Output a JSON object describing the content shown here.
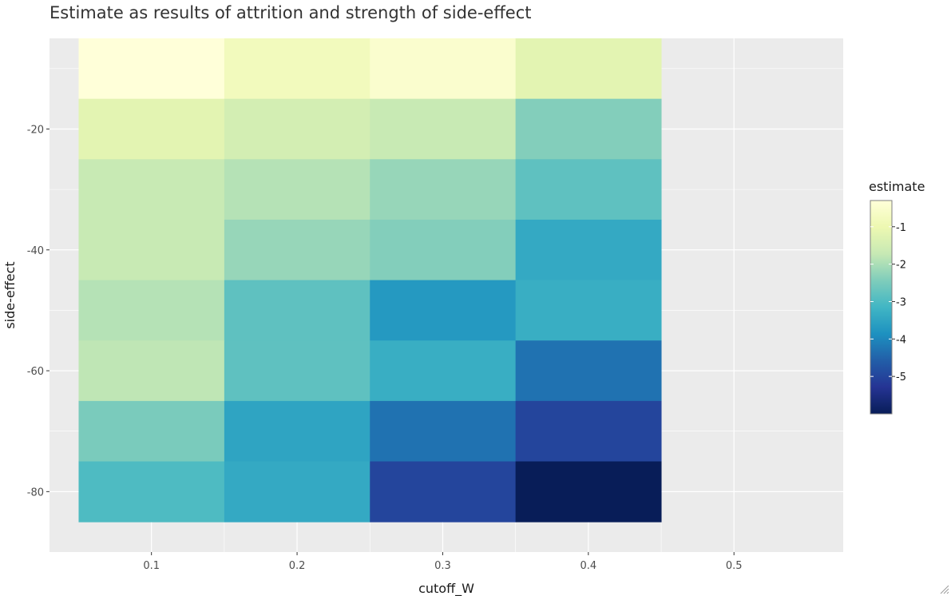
{
  "chart_data": {
    "type": "heatmap",
    "title": "Estimate as results of attrition and strength of side-effect",
    "xlabel": "cutoff_W",
    "ylabel": "side-effect",
    "x": [
      0.1,
      0.2,
      0.3,
      0.4
    ],
    "y": [
      -10,
      -20,
      -30,
      -40,
      -50,
      -60,
      -70,
      -80
    ],
    "z": [
      [
        -0.3,
        -0.8,
        -0.5,
        -1.2
      ],
      [
        -1.2,
        -1.5,
        -1.7,
        -2.4
      ],
      [
        -1.7,
        -1.9,
        -2.2,
        -2.8
      ],
      [
        -1.7,
        -2.2,
        -2.4,
        -3.4
      ],
      [
        -1.9,
        -2.8,
        -3.7,
        -3.3
      ],
      [
        -1.8,
        -2.8,
        -3.3,
        -4.3
      ],
      [
        -2.5,
        -3.5,
        -4.3,
        -5.0
      ],
      [
        -3.0,
        -3.4,
        -5.0,
        -6.0
      ]
    ],
    "xlim": [
      0.03,
      0.575
    ],
    "ylim": [
      -90,
      -5
    ],
    "xticks": [
      0.1,
      0.2,
      0.3,
      0.4,
      0.5
    ],
    "xtick_labels": [
      "0.1",
      "0.2",
      "0.3",
      "0.4",
      "0.5"
    ],
    "yticks": [
      -20,
      -40,
      -60,
      -80
    ],
    "ytick_labels": [
      "-20",
      "-40",
      "-60",
      "-80"
    ],
    "grid": true,
    "legend": {
      "title": "estimate",
      "placement": "right",
      "zmin": -6.0,
      "zmax": -0.3,
      "ticks": [
        -1,
        -2,
        -3,
        -4,
        -5
      ],
      "tick_labels": [
        "-1",
        "-2",
        "-3",
        "-4",
        "-5"
      ]
    },
    "colorscale": [
      "#ffffd9",
      "#edf8b1",
      "#c7e9b4",
      "#7fcdbb",
      "#41b6c4",
      "#1d91c0",
      "#225ea8",
      "#253494",
      "#081d58"
    ],
    "colors": {
      "panel_background": "#ebebeb",
      "grid": "#ffffff",
      "tick_line": "#333333"
    }
  }
}
